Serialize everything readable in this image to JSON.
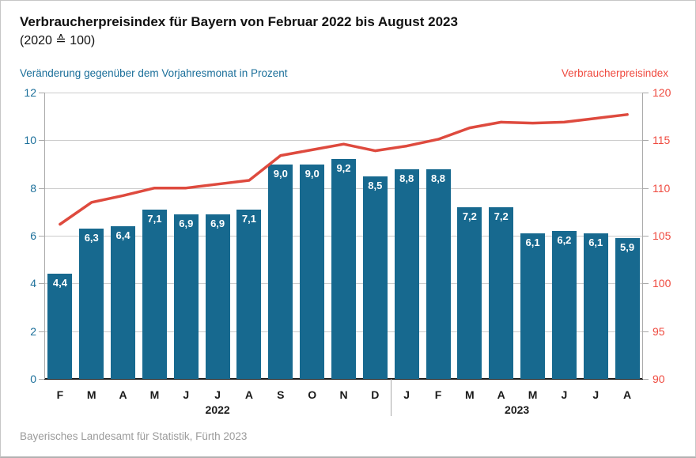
{
  "header": {
    "title": "Verbraucherpreisindex für Bayern von Februar 2022 bis August 2023",
    "subtitle": "(2020 ≙ 100)"
  },
  "footer": {
    "source": "Bayerisches Landesamt für Statistik, Fürth 2023"
  },
  "chart_data": {
    "type": "combo",
    "title": "Verbraucherpreisindex für Bayern von Februar 2022 bis August 2023 (2020 ≙ 100)",
    "categories": [
      "F",
      "M",
      "A",
      "M",
      "J",
      "J",
      "A",
      "S",
      "O",
      "N",
      "D",
      "J",
      "F",
      "M",
      "A",
      "M",
      "J",
      "J",
      "A"
    ],
    "year_groups": [
      {
        "label": "2022",
        "start_index": 0,
        "end_index": 10
      },
      {
        "label": "2023",
        "start_index": 11,
        "end_index": 18
      }
    ],
    "series": [
      {
        "name": "Veränderung gegenüber dem Vorjahresmonat in Prozent",
        "type": "bar",
        "axis": "left",
        "values": [
          4.4,
          6.3,
          6.4,
          7.1,
          6.9,
          6.9,
          7.1,
          9.0,
          9.0,
          9.2,
          8.5,
          8.8,
          8.8,
          7.2,
          7.2,
          6.1,
          6.2,
          6.1,
          5.9
        ],
        "labels": [
          "4,4",
          "6,3",
          "6,4",
          "7,1",
          "6,9",
          "6,9",
          "7,1",
          "9,0",
          "9,0",
          "9,2",
          "8,5",
          "8,8",
          "8,8",
          "7,2",
          "7,2",
          "6,1",
          "6,2",
          "6,1",
          "5,9"
        ]
      },
      {
        "name": "Verbraucherpreisindex",
        "type": "line",
        "axis": "right",
        "values": [
          106.2,
          108.5,
          109.2,
          110.0,
          110.0,
          110.4,
          110.8,
          113.4,
          114.0,
          114.6,
          113.9,
          114.4,
          115.1,
          116.3,
          116.9,
          116.8,
          116.9,
          117.3,
          117.7
        ]
      }
    ],
    "left_axis": {
      "title": "Veränderung gegenüber dem Vorjahresmonat in Prozent",
      "min": 0,
      "max": 12,
      "step": 2,
      "tick_labels": [
        "0",
        "2",
        "4",
        "6",
        "8",
        "10",
        "12"
      ]
    },
    "right_axis": {
      "title": "Verbraucherpreisindex",
      "min": 90,
      "max": 120,
      "step": 5,
      "tick_labels": [
        "90",
        "95",
        "100",
        "105",
        "110",
        "115",
        "120"
      ]
    },
    "grid": true,
    "legend_position": "axis titles above chart (left blue, right red)",
    "colors": {
      "bar": "#17698f",
      "line": "#de4a3e",
      "left_axis_text": "#1b6f9a",
      "right_axis_text": "#ef4b40",
      "grid_line": "#cccccc",
      "axis_line": "#a9a9a9",
      "baseline": "#1a1a1a",
      "bar_label_text": "#ffffff",
      "month_label_text": "#1a1a1a",
      "footer_text": "#9b9b9b"
    }
  }
}
